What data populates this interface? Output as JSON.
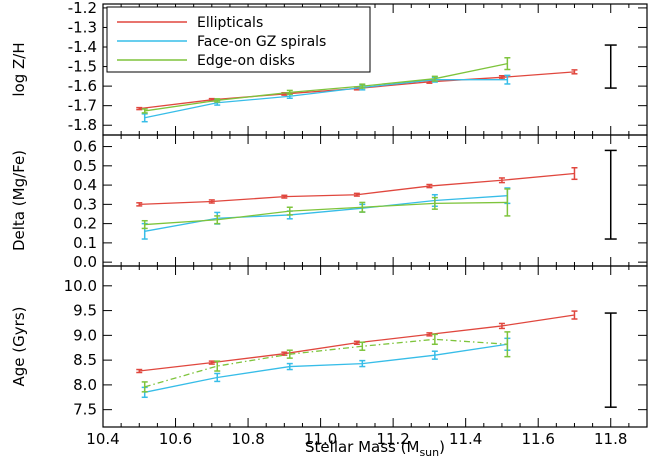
{
  "chart_data": {
    "type": "line",
    "xlabel": "Stellar Mass (M",
    "xlabel_sub": "sun",
    "xlabel_end": ")",
    "xlim": [
      10.4,
      11.9
    ],
    "xticks": [
      "10.4",
      "10.6",
      "10.8",
      "11.0",
      "11.2",
      "11.4",
      "11.6",
      "11.8"
    ],
    "legend": {
      "position": "top-left",
      "entries": [
        {
          "name": "Ellipticals",
          "color": "#e0473e"
        },
        {
          "name": "Face-on GZ spirals",
          "color": "#37bde8"
        },
        {
          "name": "Edge-on disks",
          "color": "#7ec43c"
        }
      ]
    },
    "panels": [
      {
        "ylabel": "log Z/H",
        "ylim": [
          -1.85,
          -1.18
        ],
        "yticks": [
          "-1.2",
          "-1.3",
          "-1.4",
          "-1.5",
          "-1.6",
          "-1.7",
          "-1.8"
        ],
        "ytick_values": [
          -1.2,
          -1.3,
          -1.4,
          -1.5,
          -1.6,
          -1.7,
          -1.8
        ],
        "series": [
          {
            "color": "#e0473e",
            "style": "solid",
            "x": [
              10.5,
              10.7,
              10.9,
              11.1,
              11.3,
              11.5,
              11.7
            ],
            "y": [
              -1.715,
              -1.67,
              -1.64,
              -1.612,
              -1.578,
              -1.555,
              -1.527
            ],
            "err": [
              0.005,
              0.006,
              0.006,
              0.007,
              0.007,
              0.008,
              0.01
            ]
          },
          {
            "color": "#37bde8",
            "style": "solid",
            "x": [
              10.515,
              10.715,
              10.915,
              11.115,
              11.315,
              11.515
            ],
            "y": [
              -1.762,
              -1.685,
              -1.652,
              -1.607,
              -1.567,
              -1.567
            ],
            "err": [
              0.02,
              0.012,
              0.01,
              0.012,
              0.012,
              0.022
            ]
          },
          {
            "color": "#7ec43c",
            "style": "solid",
            "x": [
              10.515,
              10.715,
              10.915,
              11.115,
              11.315,
              11.515
            ],
            "y": [
              -1.727,
              -1.673,
              -1.632,
              -1.6,
              -1.562,
              -1.485
            ],
            "err": [
              0.01,
              0.008,
              0.01,
              0.01,
              0.012,
              0.03
            ]
          }
        ],
        "errbar": {
          "x": 11.8,
          "low": -1.61,
          "high": -1.39
        }
      },
      {
        "ylabel": "Delta (Mg/Fe)",
        "ylim": [
          -0.02,
          0.66
        ],
        "yticks": [
          "0.6",
          "0.5",
          "0.4",
          "0.3",
          "0.2",
          "0.1",
          "0.0"
        ],
        "ytick_values": [
          0.6,
          0.5,
          0.4,
          0.3,
          0.2,
          0.1,
          0.0
        ],
        "series": [
          {
            "color": "#e0473e",
            "style": "solid",
            "x": [
              10.5,
              10.7,
              10.9,
              11.1,
              11.3,
              11.5,
              11.7
            ],
            "y": [
              0.3,
              0.315,
              0.34,
              0.35,
              0.395,
              0.425,
              0.46
            ],
            "err": [
              0.008,
              0.008,
              0.007,
              0.007,
              0.008,
              0.012,
              0.03
            ]
          },
          {
            "color": "#37bde8",
            "style": "solid",
            "x": [
              10.515,
              10.715,
              10.915,
              11.115,
              11.315,
              11.515
            ],
            "y": [
              0.16,
              0.228,
              0.245,
              0.28,
              0.32,
              0.345
            ],
            "err": [
              0.04,
              0.03,
              0.02,
              0.02,
              0.03,
              0.04
            ]
          },
          {
            "color": "#7ec43c",
            "style": "solid",
            "x": [
              10.515,
              10.715,
              10.915,
              11.115,
              11.315,
              11.515
            ],
            "y": [
              0.195,
              0.22,
              0.265,
              0.285,
              0.305,
              0.31
            ],
            "err": [
              0.02,
              0.02,
              0.02,
              0.025,
              0.03,
              0.07
            ]
          }
        ],
        "errbar": {
          "x": 11.8,
          "low": 0.12,
          "high": 0.58
        }
      },
      {
        "ylabel": "Age (Gyrs)",
        "ylim": [
          7.15,
          10.4
        ],
        "yticks": [
          "10.0",
          "9.5",
          "9.0",
          "8.5",
          "8.0",
          "7.5"
        ],
        "ytick_values": [
          10.0,
          9.5,
          9.0,
          8.5,
          8.0,
          7.5
        ],
        "series": [
          {
            "color": "#e0473e",
            "style": "solid",
            "x": [
              10.5,
              10.7,
              10.9,
              11.1,
              11.3,
              11.5,
              11.7
            ],
            "y": [
              8.28,
              8.45,
              8.63,
              8.85,
              9.02,
              9.19,
              9.41
            ],
            "err": [
              0.03,
              0.03,
              0.03,
              0.03,
              0.03,
              0.05,
              0.08
            ]
          },
          {
            "color": "#37bde8",
            "style": "solid",
            "x": [
              10.515,
              10.715,
              10.915,
              11.115,
              11.315,
              11.515
            ],
            "y": [
              7.85,
              8.15,
              8.37,
              8.43,
              8.6,
              8.82
            ],
            "err": [
              0.1,
              0.08,
              0.06,
              0.06,
              0.08,
              0.12
            ]
          },
          {
            "color": "#7ec43c",
            "style": "dashdot",
            "x": [
              10.515,
              10.715,
              10.915,
              11.115,
              11.315,
              11.515
            ],
            "y": [
              7.96,
              8.38,
              8.62,
              8.78,
              8.92,
              8.82
            ],
            "err": [
              0.1,
              0.1,
              0.08,
              0.08,
              0.1,
              0.25
            ]
          }
        ],
        "errbar": {
          "x": 11.8,
          "low": 7.55,
          "high": 9.45
        }
      }
    ]
  }
}
